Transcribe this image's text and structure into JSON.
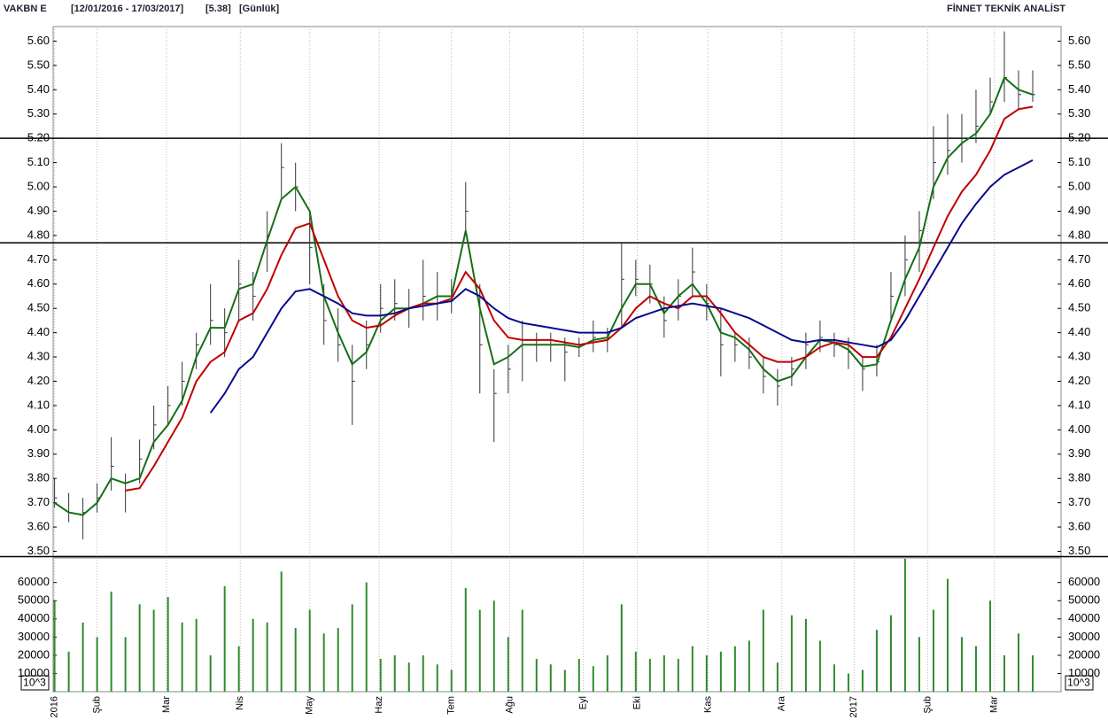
{
  "chart_data": [
    {
      "type": "hlc",
      "title": "VAKBN E",
      "period": "[12/01/2016 - 17/03/2017]",
      "last": "[5.38]",
      "interval": "[Günlük]",
      "source": "FİNNET TEKNİK ANALİST",
      "ylim": [
        3.48,
        5.66
      ],
      "yticks": [
        {
          "value": 3.5,
          "label": "3.50"
        },
        {
          "value": 3.6,
          "label": "3.60"
        },
        {
          "value": 3.7,
          "label": "3.70"
        },
        {
          "value": 3.8,
          "label": "3.80"
        },
        {
          "value": 3.9,
          "label": "3.90"
        },
        {
          "value": 4.0,
          "label": "4.00"
        },
        {
          "value": 4.1,
          "label": "4.10"
        },
        {
          "value": 4.2,
          "label": "4.20"
        },
        {
          "value": 4.3,
          "label": "4.30"
        },
        {
          "value": 4.4,
          "label": "4.40"
        },
        {
          "value": 4.5,
          "label": "4.50"
        },
        {
          "value": 4.6,
          "label": "4.60"
        },
        {
          "value": 4.7,
          "label": "4.70"
        },
        {
          "value": 4.8,
          "label": "4.80"
        },
        {
          "value": 4.9,
          "label": "4.90"
        },
        {
          "value": 5.0,
          "label": "5.00"
        },
        {
          "value": 5.1,
          "label": "5.10"
        },
        {
          "value": 5.2,
          "label": "5.20"
        },
        {
          "value": 5.3,
          "label": "5.30"
        },
        {
          "value": 5.4,
          "label": "5.40"
        },
        {
          "value": 5.5,
          "label": "5.50"
        },
        {
          "value": 5.6,
          "label": "5.60"
        }
      ],
      "color": "#333333",
      "high": [
        3.8,
        3.74,
        3.72,
        3.78,
        3.97,
        3.82,
        3.96,
        4.1,
        4.18,
        4.28,
        4.4,
        4.6,
        4.5,
        4.7,
        4.65,
        4.9,
        5.18,
        5.1,
        4.9,
        4.6,
        4.5,
        4.35,
        4.45,
        4.6,
        4.62,
        4.58,
        4.7,
        4.65,
        4.62,
        5.02,
        4.6,
        4.25,
        4.35,
        4.45,
        4.4,
        4.4,
        4.38,
        4.38,
        4.45,
        4.42,
        4.77,
        4.7,
        4.68,
        4.55,
        4.62,
        4.75,
        4.6,
        4.5,
        4.4,
        4.38,
        4.3,
        4.25,
        4.3,
        4.4,
        4.45,
        4.4,
        4.38,
        4.3,
        4.35,
        4.65,
        4.8,
        4.9,
        5.25,
        5.3,
        5.3,
        5.4,
        5.45,
        5.64,
        5.48,
        5.48
      ],
      "low": [
        3.68,
        3.62,
        3.55,
        3.66,
        3.75,
        3.66,
        3.78,
        3.92,
        4.02,
        4.1,
        4.25,
        4.35,
        4.3,
        4.45,
        4.45,
        4.65,
        4.95,
        4.9,
        4.6,
        4.35,
        4.28,
        4.02,
        4.25,
        4.4,
        4.45,
        4.42,
        4.45,
        4.45,
        4.48,
        4.8,
        4.15,
        3.95,
        4.15,
        4.2,
        4.28,
        4.28,
        4.2,
        4.3,
        4.32,
        4.32,
        4.42,
        4.55,
        4.52,
        4.38,
        4.45,
        4.55,
        4.45,
        4.22,
        4.28,
        4.25,
        4.15,
        4.1,
        4.18,
        4.25,
        4.32,
        4.3,
        4.25,
        4.16,
        4.22,
        4.45,
        4.55,
        4.65,
        4.95,
        5.05,
        5.1,
        5.18,
        5.3,
        5.35,
        5.32,
        5.35
      ],
      "close": [
        3.72,
        3.66,
        3.66,
        3.72,
        3.85,
        3.75,
        3.88,
        4.02,
        4.1,
        4.2,
        4.35,
        4.45,
        4.4,
        4.6,
        4.55,
        4.8,
        5.08,
        5.0,
        4.75,
        4.45,
        4.35,
        4.2,
        4.35,
        4.5,
        4.52,
        4.5,
        4.55,
        4.55,
        4.55,
        4.9,
        4.35,
        4.15,
        4.25,
        4.35,
        4.35,
        4.35,
        4.32,
        4.35,
        4.38,
        4.38,
        4.62,
        4.62,
        4.6,
        4.45,
        4.55,
        4.65,
        4.52,
        4.35,
        4.35,
        4.3,
        4.22,
        4.18,
        4.25,
        4.35,
        4.38,
        4.35,
        4.32,
        4.25,
        4.28,
        4.55,
        4.7,
        4.82,
        5.1,
        5.15,
        5.2,
        5.25,
        5.35,
        5.45,
        5.38,
        5.38
      ],
      "series": [
        {
          "color": "#157015",
          "values": [
            3.7,
            3.66,
            3.65,
            3.7,
            3.8,
            3.78,
            3.8,
            3.95,
            4.02,
            4.12,
            4.3,
            4.42,
            4.42,
            4.58,
            4.6,
            4.78,
            4.95,
            5.0,
            4.9,
            4.55,
            4.4,
            4.27,
            4.32,
            4.45,
            4.5,
            4.5,
            4.52,
            4.55,
            4.55,
            4.82,
            4.5,
            4.27,
            4.3,
            4.35,
            4.35,
            4.35,
            4.35,
            4.34,
            4.37,
            4.38,
            4.5,
            4.6,
            4.6,
            4.48,
            4.55,
            4.6,
            4.52,
            4.4,
            4.38,
            4.33,
            4.25,
            4.2,
            4.22,
            4.3,
            4.37,
            4.36,
            4.33,
            4.26,
            4.27,
            4.45,
            4.62,
            4.75,
            5.0,
            5.12,
            5.18,
            5.22,
            5.3,
            5.45,
            5.4,
            5.38
          ]
        },
        {
          "color": "#c00000",
          "values": [
            null,
            null,
            null,
            null,
            null,
            3.75,
            3.76,
            3.85,
            3.95,
            4.05,
            4.2,
            4.28,
            4.32,
            4.45,
            4.48,
            4.58,
            4.72,
            4.83,
            4.85,
            4.7,
            4.55,
            4.45,
            4.42,
            4.43,
            4.47,
            4.5,
            4.52,
            4.52,
            4.54,
            4.65,
            4.58,
            4.45,
            4.38,
            4.37,
            4.37,
            4.37,
            4.36,
            4.35,
            4.36,
            4.37,
            4.42,
            4.5,
            4.55,
            4.52,
            4.5,
            4.55,
            4.55,
            4.48,
            4.4,
            4.35,
            4.3,
            4.28,
            4.28,
            4.3,
            4.34,
            4.36,
            4.35,
            4.3,
            4.3,
            4.38,
            4.5,
            4.62,
            4.75,
            4.88,
            4.98,
            5.05,
            5.15,
            5.28,
            5.32,
            5.33
          ]
        },
        {
          "color": "#0a0a8c",
          "values": [
            null,
            null,
            null,
            null,
            null,
            null,
            null,
            null,
            null,
            null,
            null,
            4.07,
            4.15,
            4.25,
            4.3,
            4.4,
            4.5,
            4.57,
            4.58,
            4.55,
            4.52,
            4.48,
            4.47,
            4.47,
            4.48,
            4.5,
            4.51,
            4.52,
            4.53,
            4.58,
            4.55,
            4.5,
            4.46,
            4.44,
            4.43,
            4.42,
            4.41,
            4.4,
            4.4,
            4.4,
            4.42,
            4.46,
            4.48,
            4.5,
            4.51,
            4.52,
            4.51,
            4.5,
            4.48,
            4.46,
            4.43,
            4.4,
            4.37,
            4.36,
            4.37,
            4.37,
            4.36,
            4.35,
            4.34,
            4.37,
            4.45,
            4.55,
            4.65,
            4.75,
            4.85,
            4.93,
            5.0,
            5.05,
            5.08,
            5.11
          ]
        }
      ],
      "hlines": [
        5.2,
        4.77
      ],
      "hline_color": "#000000"
    },
    {
      "type": "bar",
      "unit_label": "10^3",
      "color": "#2e8b2e",
      "ylim": [
        0,
        73000
      ],
      "yticks": [
        10000,
        20000,
        30000,
        40000,
        50000,
        60000
      ],
      "xlim": [
        -0.1,
        71
      ],
      "xticks": [
        {
          "value": 0,
          "label": "2016"
        },
        {
          "value": 3,
          "label": "Şub"
        },
        {
          "value": 7.9,
          "label": "Mar"
        },
        {
          "value": 13.1,
          "label": "Nis"
        },
        {
          "value": 18,
          "label": "May"
        },
        {
          "value": 22.9,
          "label": "Haz"
        },
        {
          "value": 28,
          "label": "Tem"
        },
        {
          "value": 32.1,
          "label": "Ağu"
        },
        {
          "value": 37.3,
          "label": "Eyl"
        },
        {
          "value": 41.1,
          "label": "Eki"
        },
        {
          "value": 46.1,
          "label": "Kas"
        },
        {
          "value": 51.3,
          "label": "Ara"
        },
        {
          "value": 56.4,
          "label": "2017"
        },
        {
          "value": 61.6,
          "label": "Şub"
        },
        {
          "value": 66.3,
          "label": "Mar"
        }
      ],
      "values": [
        50000,
        22000,
        38000,
        30000,
        55000,
        30000,
        48000,
        45000,
        52000,
        38000,
        40000,
        20000,
        58000,
        25000,
        40000,
        38000,
        66000,
        35000,
        45000,
        32000,
        35000,
        48000,
        60000,
        18000,
        20000,
        16000,
        20000,
        15000,
        12000,
        57000,
        45000,
        50000,
        30000,
        45000,
        18000,
        15000,
        12000,
        18000,
        14000,
        20000,
        48000,
        22000,
        18000,
        20000,
        18000,
        25000,
        20000,
        22000,
        25000,
        28000,
        45000,
        16000,
        42000,
        40000,
        28000,
        15000,
        10000,
        12000,
        34000,
        42000,
        75000,
        30000,
        45000,
        62000,
        30000,
        25000,
        50000,
        20000,
        32000,
        20000
      ]
    }
  ]
}
